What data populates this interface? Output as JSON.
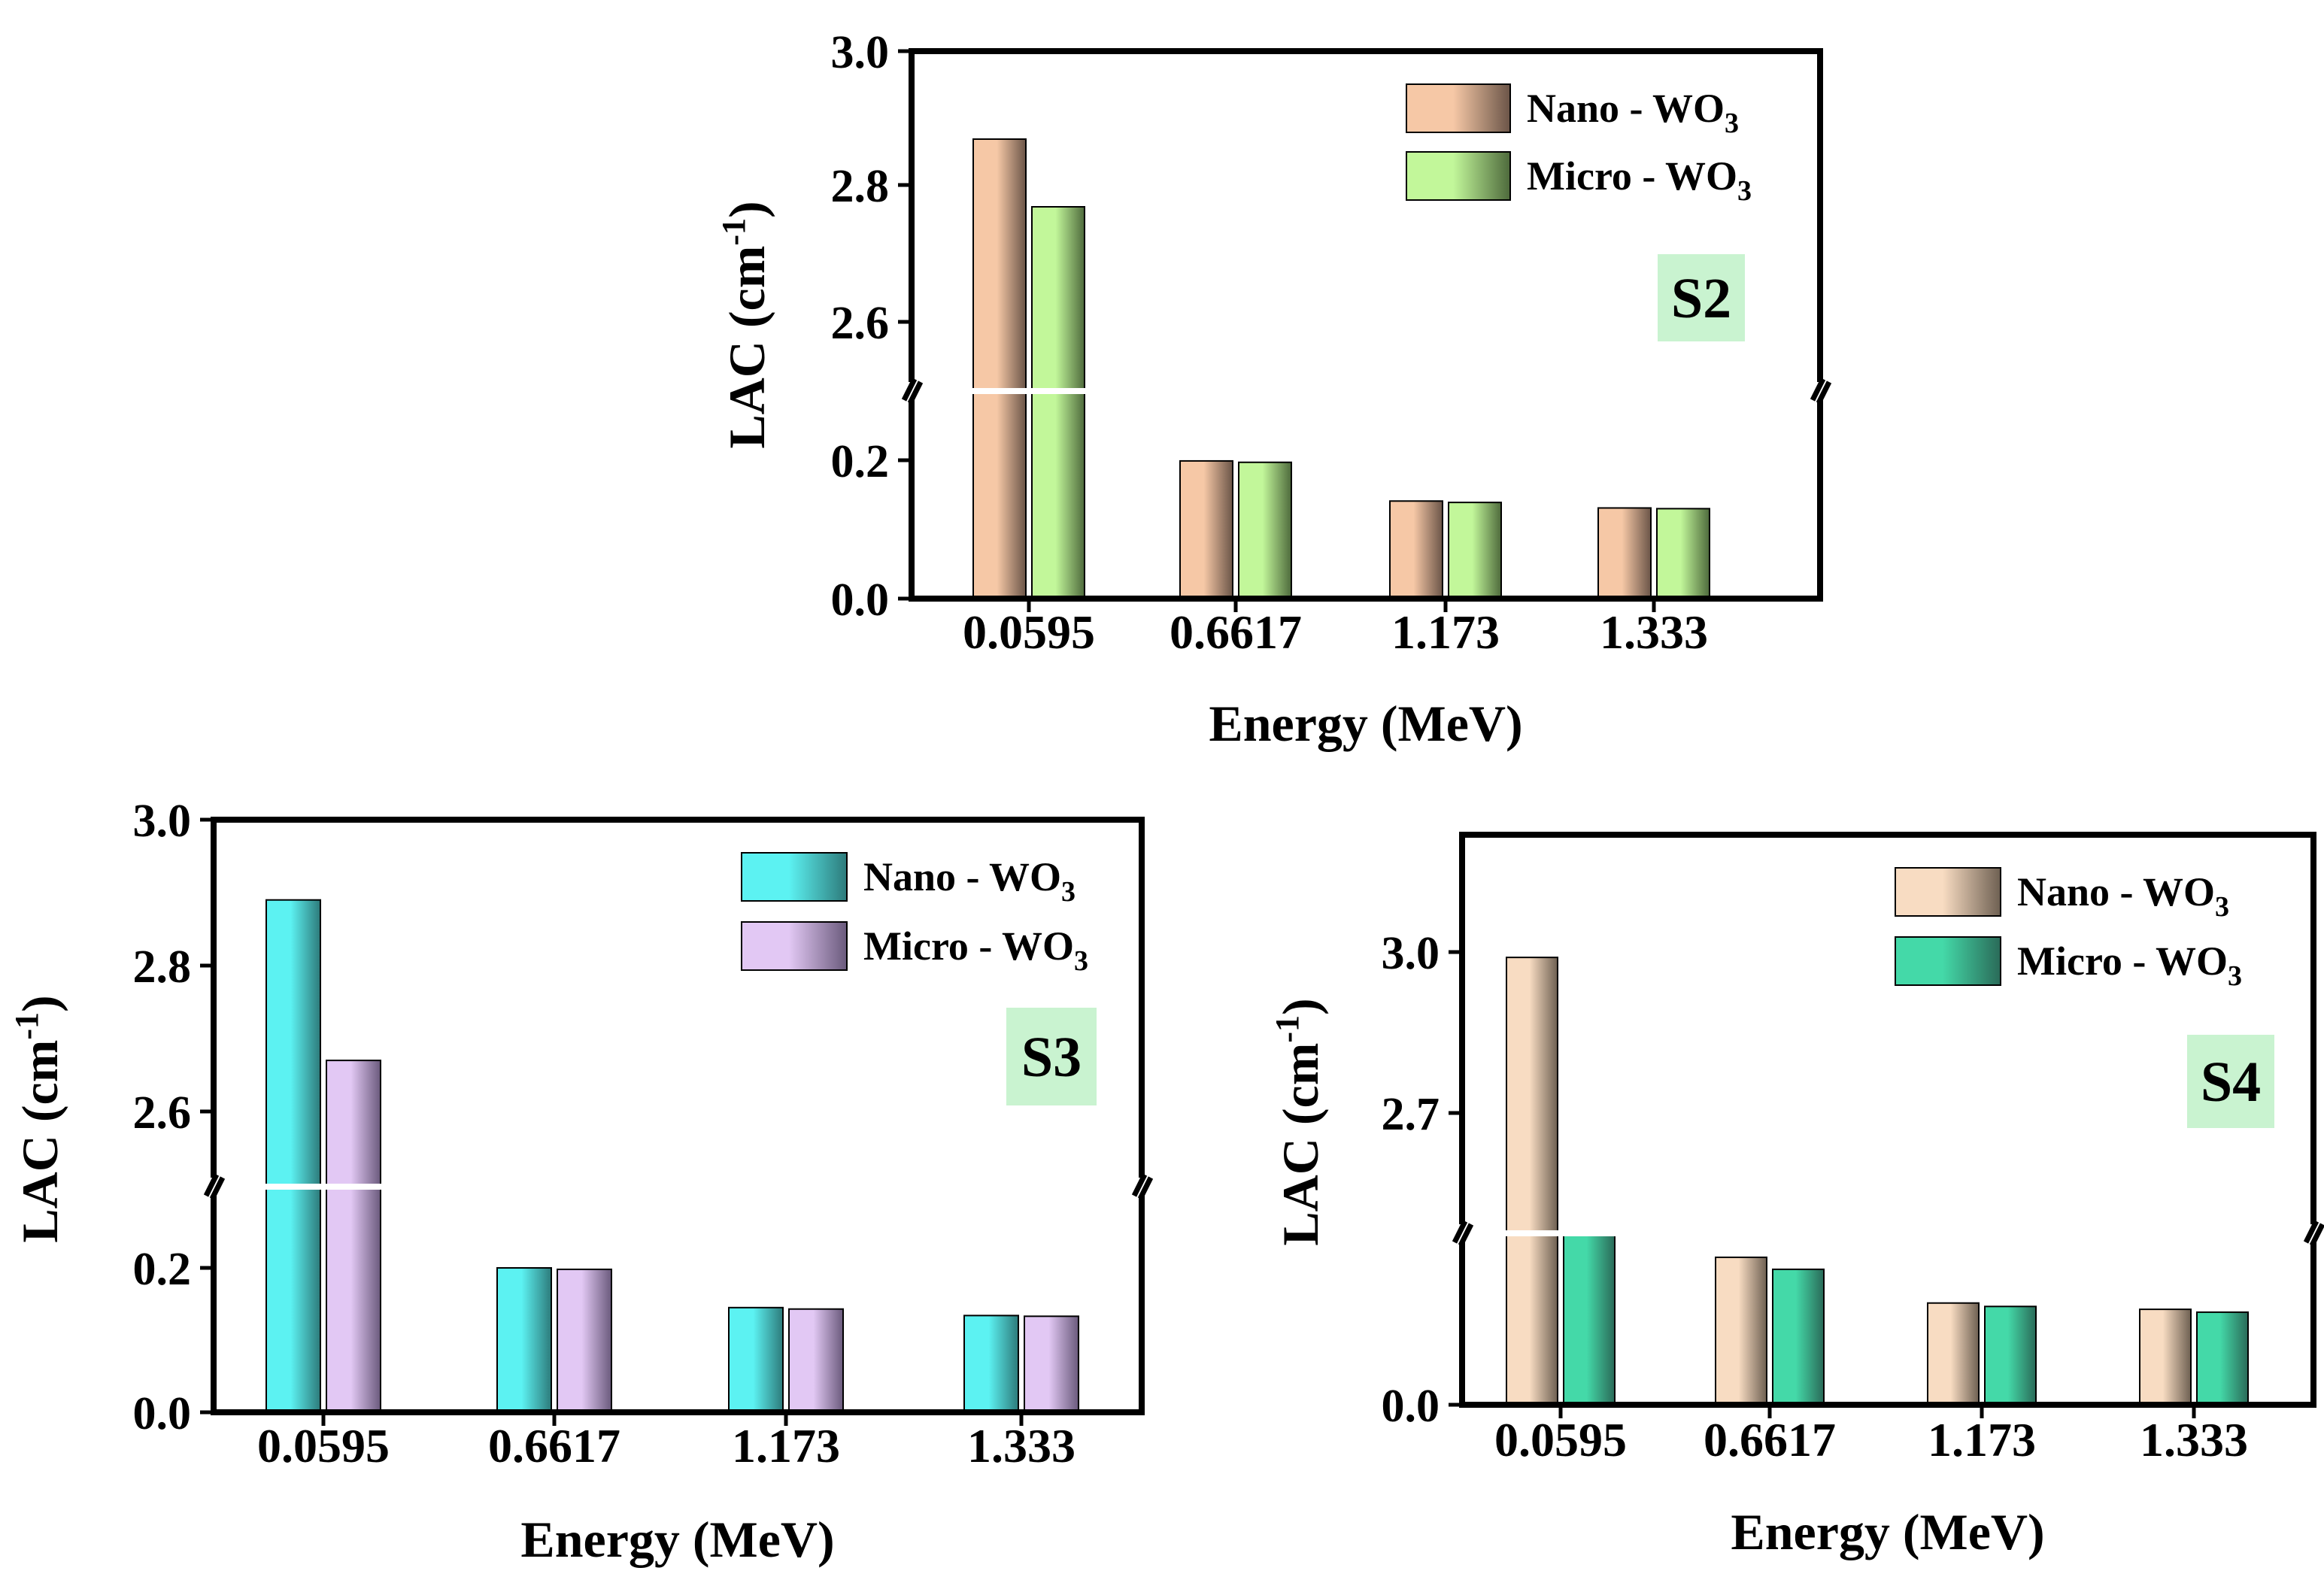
{
  "chart_data": [
    {
      "type": "bar",
      "panel_label": "S2",
      "categories": [
        "0.0595",
        "0.6617",
        "1.173",
        "1.333"
      ],
      "xlabel": "Energy (MeV)",
      "ylabel_main": "LAC (cm",
      "ylabel_sup": "-1",
      "ylabel_close": ")",
      "y_broken": true,
      "y_lower_range": [
        0,
        0.2
      ],
      "y_upper_range": [
        2.5,
        3.0
      ],
      "yticks": [
        "3.0",
        "2.8",
        "2.6",
        "0.2",
        "0.0"
      ],
      "series": [
        {
          "name_main": "Nano - WO",
          "name_sub": "3",
          "values": [
            2.87,
            0.199,
            0.141,
            0.131
          ],
          "color_light": "#f6c8a6",
          "color_dark": "#6b5548"
        },
        {
          "name_main": "Micro - WO",
          "name_sub": "3",
          "values": [
            2.77,
            0.197,
            0.139,
            0.13
          ],
          "color_light": "#c2f79a",
          "color_dark": "#4e6a3c"
        }
      ],
      "badge_color": "#c9f3d0"
    },
    {
      "type": "bar",
      "panel_label": "S3",
      "categories": [
        "0.0595",
        "0.6617",
        "1.173",
        "1.333"
      ],
      "xlabel": "Energy (MeV)",
      "ylabel_main": "LAC (cm",
      "ylabel_sup": "-1",
      "ylabel_close": ")",
      "y_broken": true,
      "y_lower_range": [
        0,
        0.2
      ],
      "y_upper_range": [
        2.5,
        3.0
      ],
      "yticks": [
        "3.0",
        "2.8",
        "2.6",
        "0.2",
        "0.0"
      ],
      "series": [
        {
          "name_main": "Nano - WO",
          "name_sub": "3",
          "values": [
            2.89,
            0.203,
            0.145,
            0.134
          ],
          "color_light": "#5cf2f2",
          "color_dark": "#2d7a7a"
        },
        {
          "name_main": "Micro - WO",
          "name_sub": "3",
          "values": [
            2.67,
            0.198,
            0.143,
            0.133
          ],
          "color_light": "#e2c8f4",
          "color_dark": "#6a5a7c"
        }
      ],
      "badge_color": "#c9f3d0"
    },
    {
      "type": "bar",
      "panel_label": "S4",
      "categories": [
        "0.0595",
        "0.6617",
        "1.173",
        "1.333"
      ],
      "xlabel": "Energy (MeV)",
      "ylabel_main": "LAC (cm",
      "ylabel_sup": "-1",
      "ylabel_close": ")",
      "y_broken": true,
      "yticks": [
        "3.0",
        "2.7",
        "0.0"
      ],
      "series": [
        {
          "name_main": "Nano - WO",
          "name_sub": "3",
          "values": [
            2.99,
            0.258,
            0.178,
            0.167
          ],
          "color_light": "#f8dcc2",
          "color_dark": "#6e6052"
        },
        {
          "name_main": "Micro - WO",
          "name_sub": "3",
          "values": [
            2.5,
            0.237,
            0.172,
            0.162
          ],
          "color_light": "#44d9a8",
          "color_dark": "#2a6a58"
        }
      ],
      "badge_color": "#c9f3d0"
    }
  ]
}
